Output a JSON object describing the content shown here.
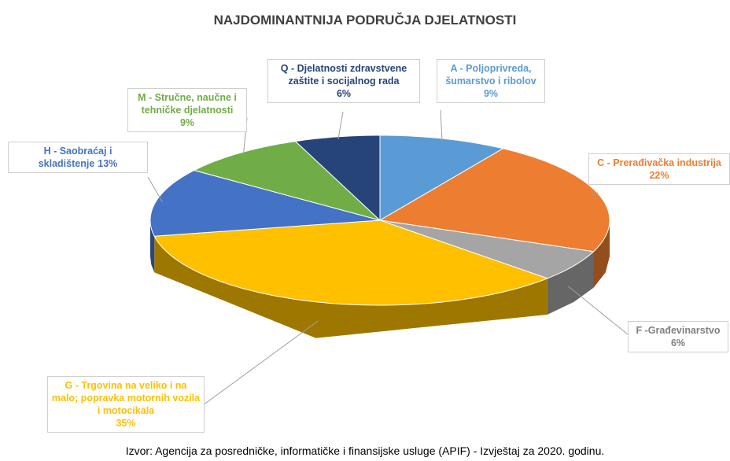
{
  "chart_data": {
    "type": "pie",
    "title": "NAJDOMINANTNIJA PODRUČJA DJELATNOSTI",
    "categories": [
      "A - Poljoprivreda, šumarstvo i ribolov",
      "C - Prerađivačka industrija",
      "F -Građevinarstvo",
      "G - Trgovina na veliko i na malo; popravka motornih vozila i motocikala",
      "H - Saobraćaj i skladištenje",
      "M - Stručne, naučne i tehničke djelatnosti",
      "Q - Djelatnosti zdravstvene zaštite i socijalnog rada"
    ],
    "values": [
      9,
      22,
      6,
      35,
      13,
      9,
      6
    ],
    "value_labels": [
      "9%",
      "22%",
      "6%",
      "35%",
      "13%",
      "9%",
      "6%"
    ],
    "colors": [
      "#5b9bd5",
      "#ed7d31",
      "#a5a5a5",
      "#ffc000",
      "#4472c4",
      "#70ad47",
      "#264478"
    ],
    "source": "Izvor: Agencija za posredničke, informatičke i finansijske usluge (APIF) - Izvještaj za 2020. godinu."
  }
}
